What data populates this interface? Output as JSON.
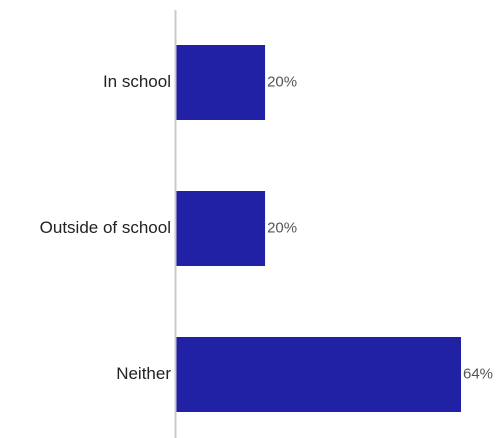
{
  "colors": {
    "bar": "#2121a6",
    "axis": "#c9c9c9",
    "category_text": "#222222",
    "value_text": "#555555"
  },
  "chart_data": {
    "type": "bar",
    "orientation": "horizontal",
    "categories": [
      "In school",
      "Outside of school",
      "Neither"
    ],
    "values": [
      20,
      20,
      64
    ],
    "value_labels": [
      "20%",
      "20%",
      "64%"
    ],
    "unit": "%",
    "xlim": [
      0,
      64
    ],
    "grid": false,
    "legend": "none",
    "title": "",
    "xlabel": "",
    "ylabel": ""
  }
}
